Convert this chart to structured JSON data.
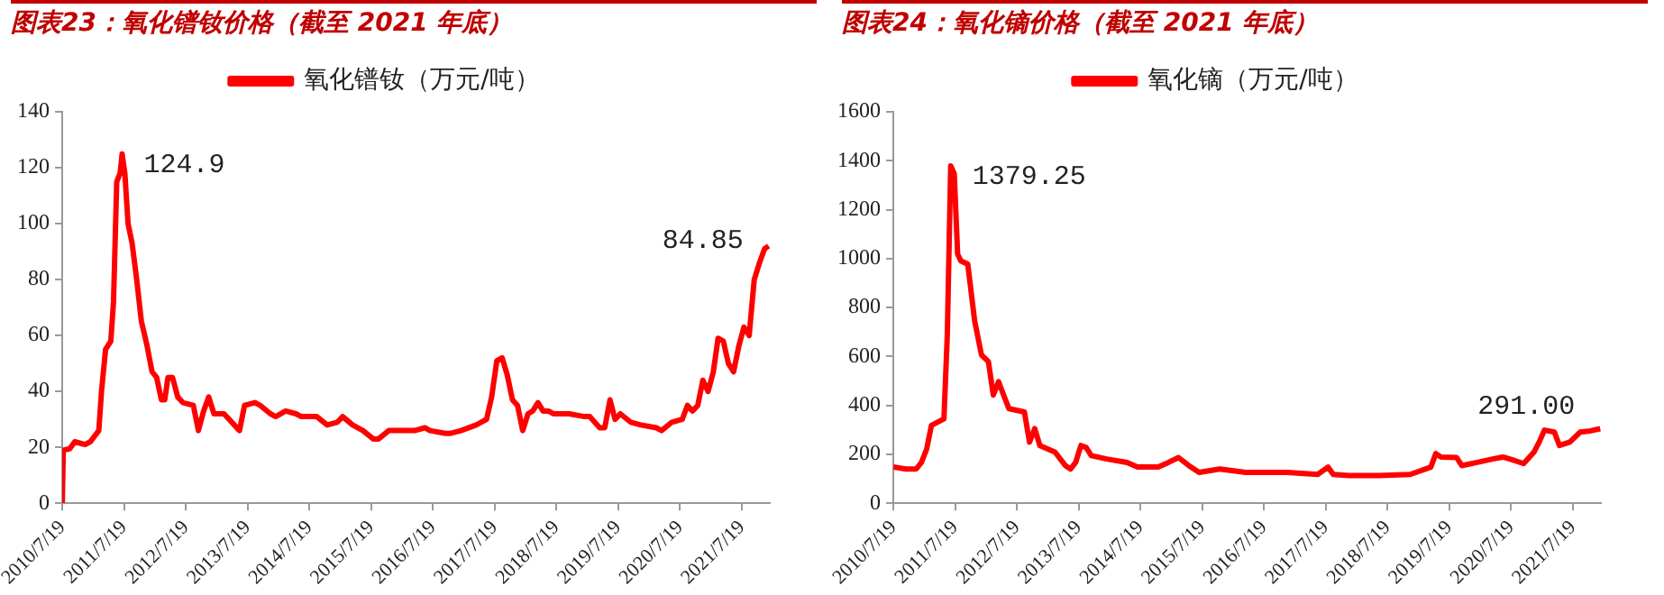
{
  "chart_data": [
    {
      "type": "line",
      "title": "图表23：氧化镨钕价格（截至 2021 年底）",
      "legend": "top",
      "grid": false,
      "x": [
        "2010-07-19",
        "2010-07-25",
        "2010-09",
        "2010-10",
        "2010-12",
        "2011-01",
        "2011-02-20",
        "2011-03-08",
        "2011-04-01",
        "2011-05-02",
        "2011-05-18",
        "2011-06-06",
        "2011-06-26",
        "2011-07-08",
        "2011-07-24",
        "2011-08-12",
        "2011-09-05",
        "2011-10-02",
        "2011-10-30",
        "2011-11-30",
        "2012-01-01",
        "2012-01-28",
        "2012-02-25",
        "2012-03-16",
        "2012-04-04",
        "2012-05",
        "2012-06",
        "2012-07",
        "2012-09",
        "2012-10",
        "2012-11",
        "2012-12",
        "2013-01",
        "2013-03",
        "2013-05",
        "2013-06",
        "2013-07",
        "2013-09",
        "2013-10",
        "2013-12",
        "2014-01",
        "2014-03",
        "2014-05",
        "2014-06",
        "2014-09",
        "2014-11",
        "2015-01",
        "2015-02",
        "2015-04",
        "2015-06",
        "2015-08",
        "2015-09",
        "2015-11",
        "2016-02",
        "2016-04",
        "2016-06",
        "2016-07",
        "2016-10",
        "2016-11",
        "2017-01",
        "2017-04",
        "2017-06",
        "2017-07",
        "2017-08",
        "2017-09",
        "2017-10",
        "2017-11",
        "2017-12",
        "2018-01",
        "2018-02",
        "2018-03",
        "2018-04",
        "2018-05",
        "2018-06",
        "2018-07",
        "2018-10",
        "2019-01",
        "2019-02",
        "2019-04",
        "2019-05",
        "2019-06",
        "2019-07",
        "2019-08",
        "2019-10",
        "2019-12",
        "2020-03",
        "2020-04",
        "2020-06",
        "2020-08",
        "2020-09",
        "2020-10",
        "2020-11",
        "2020-12",
        "2021-01",
        "2021-02",
        "2021-03",
        "2021-04",
        "2021-05",
        "2021-06",
        "2021-07",
        "2021-08",
        "2021-09",
        "2021-10",
        "2021-11",
        "2021-12",
        "2021-12-25"
      ],
      "series": [
        {
          "name": "氧化镨钕（万元/吨）",
          "color": "#ff0000",
          "values": [
            0,
            19,
            19.5,
            22,
            21,
            22,
            26,
            40,
            55,
            58,
            72,
            115,
            118,
            124.9,
            118,
            100,
            93,
            80,
            65,
            57,
            47,
            45,
            37,
            37,
            45,
            45,
            38,
            36,
            35,
            26,
            33,
            38,
            32,
            32,
            28,
            26,
            35,
            36,
            35,
            32,
            31,
            33,
            32,
            31,
            31,
            28,
            29,
            31,
            28,
            26,
            23,
            23,
            26,
            26,
            26,
            27,
            26,
            25,
            25,
            26,
            28,
            30,
            38,
            51,
            52,
            46,
            37,
            35,
            26,
            32,
            33,
            36,
            33,
            33,
            32,
            32,
            31,
            31,
            27,
            27,
            37,
            30,
            32,
            29,
            28,
            27,
            26,
            29,
            30,
            35,
            33,
            35,
            44,
            40,
            47,
            59,
            58,
            50,
            47,
            56,
            63,
            60,
            80,
            86,
            91,
            92
          ]
        }
      ],
      "xlim": [
        "2010-07-19",
        "2022-01-01"
      ],
      "xticks": [
        {
          "value": "2010-07-19",
          "label": "2010/7/19"
        },
        {
          "value": "2011-07-19",
          "label": "2011/7/19"
        },
        {
          "value": "2012-07-19",
          "label": "2012/7/19"
        },
        {
          "value": "2013-07-19",
          "label": "2013/7/19"
        },
        {
          "value": "2014-07-19",
          "label": "2014/7/19"
        },
        {
          "value": "2015-07-19",
          "label": "2015/7/19"
        },
        {
          "value": "2016-07-19",
          "label": "2016/7/19"
        },
        {
          "value": "2017-07-19",
          "label": "2017/7/19"
        },
        {
          "value": "2018-07-19",
          "label": "2018/7/19"
        },
        {
          "value": "2019-07-19",
          "label": "2019/7/19"
        },
        {
          "value": "2020-07-19",
          "label": "2020/7/19"
        },
        {
          "value": "2021-07-19",
          "label": "2021/7/19"
        }
      ],
      "ylim": [
        0,
        140
      ],
      "yticks": [
        0,
        20,
        40,
        60,
        80,
        100,
        120,
        140
      ],
      "annotations": [
        {
          "text": "124.9",
          "x": "2011-07-08",
          "y": 124.9
        },
        {
          "text": "84.85",
          "x": "2021-12-25",
          "y": 84.85
        }
      ]
    },
    {
      "type": "line",
      "title": "图表24：氧化镝价格（截至 2021 年底）",
      "legend": "top",
      "grid": false,
      "x": [
        "2010-07-19",
        "2010-10",
        "2010-12",
        "2011-01",
        "2011-02",
        "2011-03",
        "2011-05-14",
        "2011-06-03",
        "2011-06-23",
        "2011-07-14",
        "2011-08-03",
        "2011-08-23",
        "2011-10-02",
        "2011-11-12",
        "2011-12-22",
        "2012-02",
        "2012-03",
        "2012-04",
        "2012-05",
        "2012-06",
        "2012-09",
        "2012-10",
        "2012-11",
        "2012-12",
        "2013-03",
        "2013-05",
        "2013-06",
        "2013-07",
        "2013-08",
        "2013-09",
        "2013-10",
        "2014-01",
        "2014-05",
        "2014-07",
        "2014-11",
        "2015-01",
        "2015-03",
        "2015-05",
        "2015-07",
        "2015-11",
        "2016-04",
        "2016-12",
        "2017-06",
        "2017-08",
        "2017-09",
        "2017-12",
        "2018-06",
        "2018-12",
        "2019-04",
        "2019-05",
        "2019-06",
        "2019-09",
        "2019-10",
        "2020-01",
        "2020-04",
        "2020-06",
        "2020-08",
        "2020-10",
        "2020-12",
        "2021-01",
        "2021-02",
        "2021-04",
        "2021-05",
        "2021-07",
        "2021-09",
        "2021-11",
        "2021-12-28"
      ],
      "series": [
        {
          "name": "氧化镝（万元/吨）",
          "color": "#ff0000",
          "values": [
            148,
            140,
            140,
            167,
            222,
            318,
            345,
            690,
            1379.25,
            1347,
            1018,
            990,
            977,
            744,
            606,
            579,
            442,
            497,
            442,
            387,
            373,
            250,
            305,
            236,
            209,
            154,
            140,
            167,
            236,
            228,
            195,
            181,
            167,
            148,
            148,
            167,
            187,
            154,
            126,
            140,
            126,
            126,
            118,
            148,
            118,
            113,
            113,
            118,
            148,
            203,
            189,
            187,
            154,
            167,
            181,
            189,
            176,
            162,
            209,
            250,
            299,
            291,
            236,
            250,
            291,
            296,
            305
          ]
        }
      ],
      "xlim": [
        "2010-07-19",
        "2022-01-01"
      ],
      "xticks": [
        {
          "value": "2010-07-19",
          "label": "2010/7/19"
        },
        {
          "value": "2011-07-19",
          "label": "2011/7/19"
        },
        {
          "value": "2012-07-19",
          "label": "2012/7/19"
        },
        {
          "value": "2013-07-19",
          "label": "2013/7/19"
        },
        {
          "value": "2014-07-19",
          "label": "2014/7/19"
        },
        {
          "value": "2015-07-19",
          "label": "2015/7/19"
        },
        {
          "value": "2016-07-19",
          "label": "2016/7/19"
        },
        {
          "value": "2017-07-19",
          "label": "2017/7/19"
        },
        {
          "value": "2018-07-19",
          "label": "2018/7/19"
        },
        {
          "value": "2019-07-19",
          "label": "2019/7/19"
        },
        {
          "value": "2020-07-19",
          "label": "2020/7/19"
        },
        {
          "value": "2021-07-19",
          "label": "2021/7/19"
        }
      ],
      "ylim": [
        0,
        1600
      ],
      "yticks": [
        0,
        200,
        400,
        600,
        800,
        1000,
        1200,
        1400,
        1600
      ],
      "annotations": [
        {
          "text": "1379.25",
          "x": "2011-06-23",
          "y": 1379.25
        },
        {
          "text": "291.00",
          "x": "2021-12-28",
          "y": 291
        }
      ]
    }
  ]
}
